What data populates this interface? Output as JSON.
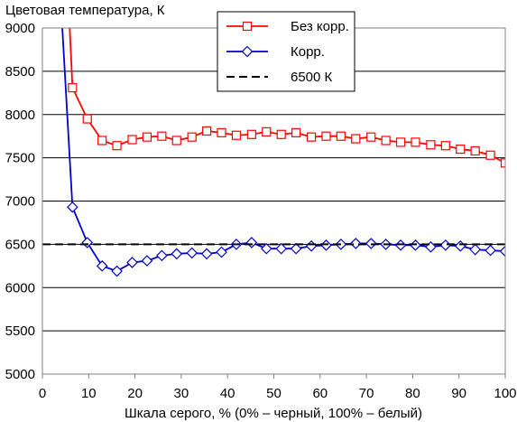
{
  "chart_data": {
    "type": "line",
    "title": "",
    "ylabel": "Цветовая температура, К",
    "xlabel": "Шкала серого, % (0% – черный, 100% – белый)",
    "xlim": [
      0,
      100
    ],
    "ylim": [
      5000,
      9000
    ],
    "xticks": [
      "0",
      "10",
      "20",
      "30",
      "40",
      "50",
      "60",
      "70",
      "80",
      "90",
      "100"
    ],
    "yticks": [
      "5000",
      "5500",
      "6000",
      "6500",
      "7000",
      "7500",
      "8000",
      "8500",
      "9000"
    ],
    "grid": "horizontal",
    "legend_position": "top-center",
    "x": [
      0,
      3.2,
      6.5,
      9.7,
      12.9,
      16.1,
      19.4,
      22.6,
      25.8,
      29.0,
      32.3,
      35.5,
      38.7,
      41.9,
      45.2,
      48.4,
      51.6,
      54.8,
      58.1,
      61.3,
      64.5,
      67.7,
      71.0,
      74.2,
      77.4,
      80.6,
      83.9,
      87.1,
      90.3,
      93.5,
      96.8,
      100
    ],
    "series": [
      {
        "name": "Без корр.",
        "color": "#ff0000",
        "marker": "square",
        "values": [
          null,
          null,
          8310,
          7950,
          7700,
          7640,
          7710,
          7740,
          7750,
          7700,
          7740,
          7810,
          7790,
          7760,
          7770,
          7800,
          7770,
          7790,
          7740,
          7750,
          7750,
          7720,
          7740,
          7700,
          7680,
          7680,
          7650,
          7640,
          7600,
          7580,
          7530,
          7440
        ],
        "steep_start": [
          5.9,
          9000
        ]
      },
      {
        "name": "Корр.",
        "color": "#0000cc",
        "marker": "diamond",
        "values": [
          null,
          null,
          6930,
          6520,
          6250,
          6190,
          6290,
          6310,
          6370,
          6390,
          6400,
          6390,
          6410,
          6500,
          6520,
          6450,
          6450,
          6450,
          6480,
          6490,
          6500,
          6510,
          6510,
          6500,
          6490,
          6490,
          6470,
          6490,
          6480,
          6440,
          6430,
          6420
        ],
        "steep_start": [
          4.3,
          9000
        ]
      },
      {
        "name": "6500 К",
        "color": "#000000",
        "style": "dashed",
        "reference": 6500
      }
    ]
  }
}
